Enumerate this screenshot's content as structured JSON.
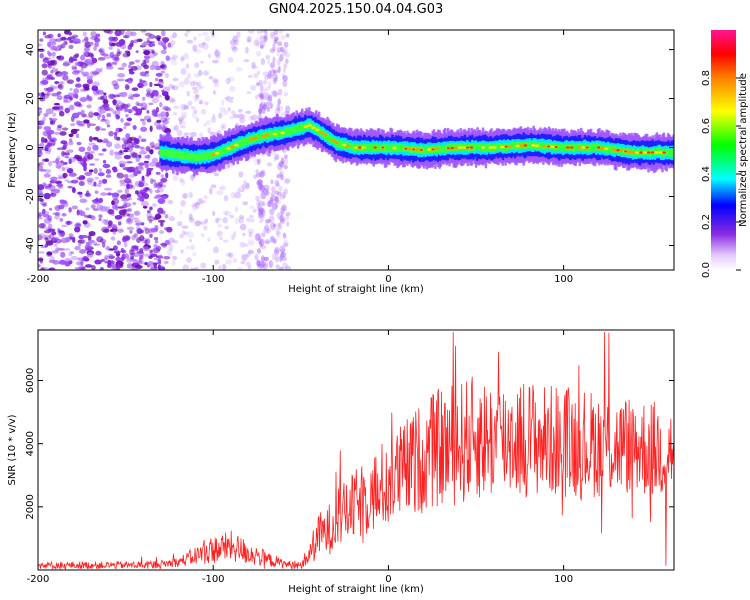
{
  "title": "GN04.2025.150.04.04.G03",
  "chart_data": [
    {
      "type": "heatmap",
      "name": "spectrogram",
      "xlabel": "Height of straight line (km)",
      "ylabel": "Frequency (Hz)",
      "xlim": [
        -200,
        163
      ],
      "ylim": [
        -50,
        48
      ],
      "xticks": [
        -200,
        -100,
        0,
        100
      ],
      "yticks": [
        -40,
        -20,
        0,
        20,
        40
      ],
      "colorbar": {
        "label": "Normalized spectral amplitude",
        "range": [
          0,
          1
        ],
        "ticks": [
          "0.0",
          "0.2",
          "0.4",
          "0.6",
          "0.8"
        ]
      },
      "ridge": {
        "description": "dominant frequency track vs height",
        "x": [
          -130,
          -120,
          -110,
          -100,
          -90,
          -80,
          -70,
          -60,
          -50,
          -45,
          -40,
          -30,
          -20,
          -10,
          0,
          20,
          40,
          60,
          80,
          100,
          120,
          140,
          163
        ],
        "y": [
          -2,
          -3,
          -4,
          -3,
          0,
          3,
          5,
          6,
          8,
          9,
          7,
          2,
          0,
          0,
          0,
          -1,
          0,
          0,
          1,
          0,
          0,
          -2,
          -2
        ]
      }
    },
    {
      "type": "line",
      "name": "snr",
      "xlabel": "Height of straight line (km)",
      "ylabel": "SNR (10 * v/v)",
      "xlim": [
        -200,
        163
      ],
      "ylim": [
        0,
        7600
      ],
      "xticks": [
        -200,
        -100,
        0,
        100
      ],
      "yticks": [
        2000,
        4000,
        6000
      ],
      "color": "#ff2020",
      "envelope": {
        "x": [
          -200,
          -170,
          -140,
          -130,
          -120,
          -110,
          -100,
          -90,
          -80,
          -70,
          -60,
          -55,
          -50,
          -45,
          -40,
          -35,
          -30,
          -20,
          -10,
          0,
          10,
          20,
          30,
          40,
          50,
          60,
          70,
          80,
          90,
          100,
          110,
          120,
          130,
          140,
          150,
          163
        ],
        "mean": [
          150,
          150,
          160,
          180,
          250,
          450,
          650,
          750,
          550,
          350,
          200,
          150,
          150,
          500,
          1100,
          1200,
          1600,
          2000,
          2400,
          2800,
          3200,
          3600,
          3900,
          4000,
          4200,
          4100,
          4200,
          4200,
          4100,
          4100,
          4000,
          4000,
          3900,
          4000,
          3800,
          3800
        ],
        "amp": [
          120,
          120,
          120,
          130,
          150,
          300,
          450,
          500,
          400,
          250,
          150,
          120,
          120,
          400,
          700,
          800,
          900,
          1100,
          1300,
          1500,
          1600,
          1800,
          1900,
          2000,
          2000,
          1900,
          1900,
          1900,
          1800,
          1800,
          1800,
          1700,
          1600,
          1600,
          1600,
          1500
        ]
      }
    }
  ]
}
